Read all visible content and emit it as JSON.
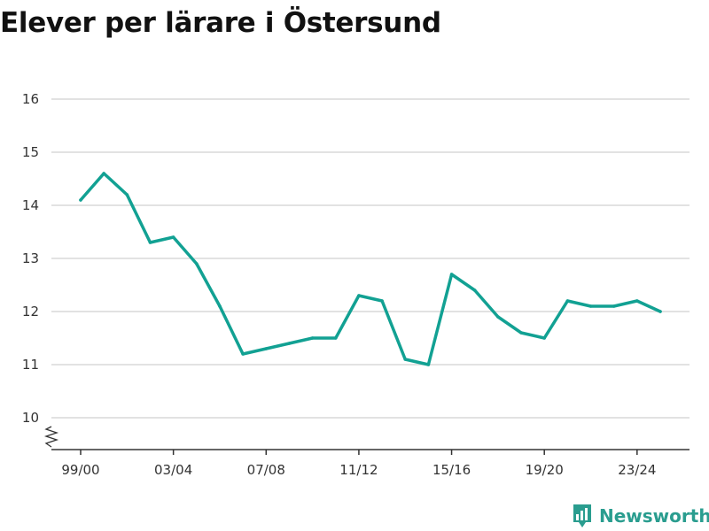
{
  "title": "Elever per lärare i Östersund",
  "brand": {
    "name": "Newsworthy",
    "icon": "newsworthy-logo-icon",
    "color": "#2a9d8f"
  },
  "colors": {
    "line": "#12a193",
    "grid": "#d9d9d9",
    "axis": "#333333"
  },
  "chart_data": {
    "type": "line",
    "title": "Elever per lärare i Östersund",
    "xlabel": "",
    "ylabel": "",
    "x": [
      "99/00",
      "00/01",
      "01/02",
      "02/03",
      "03/04",
      "04/05",
      "05/06",
      "06/07",
      "07/08",
      "08/09",
      "09/10",
      "10/11",
      "11/12",
      "12/13",
      "13/14",
      "14/15",
      "15/16",
      "16/17",
      "17/18",
      "18/19",
      "19/20",
      "20/21",
      "21/22",
      "22/23",
      "23/24",
      "24/25"
    ],
    "series": [
      {
        "values": [
          14.1,
          14.6,
          14.2,
          13.3,
          13.4,
          12.9,
          12.1,
          11.2,
          11.3,
          11.4,
          11.5,
          11.5,
          12.3,
          12.2,
          11.1,
          11.0,
          12.7,
          12.4,
          11.9,
          11.6,
          11.5,
          12.2,
          12.1,
          12.1,
          12.2,
          12.0
        ]
      }
    ],
    "x_tick_labels": [
      "99/00",
      "03/04",
      "07/08",
      "11/12",
      "15/16",
      "19/20",
      "23/24"
    ],
    "y_ticks": [
      10,
      11,
      12,
      13,
      14,
      15,
      16
    ],
    "ylim": [
      9.4,
      16.2
    ],
    "axis_break": true,
    "grid": true,
    "legend": "none"
  }
}
